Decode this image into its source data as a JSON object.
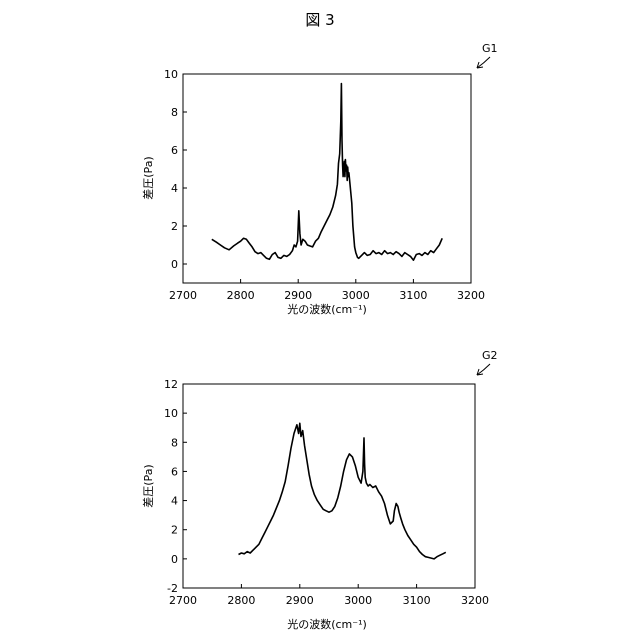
{
  "figure": {
    "title": "図 3"
  },
  "chart_data": [
    {
      "type": "line",
      "id": "G1",
      "xlabel": "光の波数(cm⁻¹)",
      "ylabel": "差圧(Pa)",
      "xlim": [
        2700,
        3200
      ],
      "ylim": [
        -1,
        10
      ],
      "xticks": [
        2700,
        2800,
        2900,
        3000,
        3100,
        3200
      ],
      "yticks": [
        0,
        2,
        4,
        6,
        8,
        10
      ],
      "grid": false,
      "series": [
        {
          "x": [
            2750,
            2758,
            2765,
            2772,
            2780,
            2788,
            2795,
            2800,
            2805,
            2810,
            2815,
            2820,
            2825,
            2830,
            2835,
            2840,
            2845,
            2850,
            2855,
            2860,
            2865,
            2870,
            2875,
            2880,
            2885,
            2890,
            2893,
            2896,
            2899,
            2901,
            2903,
            2905,
            2908,
            2912,
            2916,
            2920,
            2925,
            2930,
            2935,
            2940,
            2945,
            2950,
            2955,
            2960,
            2965,
            2968,
            2970,
            2972,
            2974,
            2975,
            2976,
            2977,
            2978,
            2979,
            2980,
            2981,
            2982,
            2983,
            2984,
            2985,
            2986,
            2987,
            2988,
            2990,
            2993,
            2995,
            2998,
            3000,
            3003,
            3005,
            3010,
            3015,
            3020,
            3025,
            3030,
            3035,
            3040,
            3045,
            3050,
            3055,
            3060,
            3065,
            3070,
            3075,
            3080,
            3085,
            3090,
            3095,
            3100,
            3105,
            3110,
            3115,
            3120,
            3125,
            3130,
            3135,
            3140,
            3145,
            3150
          ],
          "y": [
            1.3,
            1.15,
            1.0,
            0.85,
            0.75,
            0.95,
            1.1,
            1.2,
            1.35,
            1.3,
            1.1,
            0.9,
            0.65,
            0.55,
            0.6,
            0.45,
            0.3,
            0.25,
            0.5,
            0.6,
            0.35,
            0.3,
            0.45,
            0.4,
            0.5,
            0.7,
            1.0,
            0.9,
            1.2,
            2.8,
            1.6,
            1.0,
            1.3,
            1.2,
            1.0,
            0.95,
            0.9,
            1.2,
            1.35,
            1.7,
            2.0,
            2.3,
            2.6,
            3.0,
            3.6,
            4.2,
            5.3,
            5.8,
            7.5,
            9.5,
            6.5,
            5.2,
            4.6,
            5.0,
            5.4,
            4.6,
            5.5,
            4.9,
            5.2,
            4.4,
            5.1,
            4.6,
            4.8,
            4.2,
            3.2,
            2.0,
            0.9,
            0.6,
            0.35,
            0.3,
            0.45,
            0.6,
            0.45,
            0.5,
            0.7,
            0.55,
            0.6,
            0.5,
            0.7,
            0.55,
            0.6,
            0.5,
            0.65,
            0.55,
            0.4,
            0.6,
            0.5,
            0.4,
            0.2,
            0.5,
            0.55,
            0.45,
            0.6,
            0.5,
            0.7,
            0.6,
            0.8,
            1.0,
            1.35
          ]
        }
      ]
    },
    {
      "type": "line",
      "id": "G2",
      "xlabel": "光の波数(cm⁻¹)",
      "ylabel": "差圧(Pa)",
      "xlim": [
        2700,
        3200
      ],
      "ylim": [
        -2,
        12
      ],
      "xticks": [
        2700,
        2800,
        2900,
        3000,
        3100,
        3200
      ],
      "yticks": [
        -2,
        0,
        2,
        4,
        6,
        8,
        10,
        12
      ],
      "grid": false,
      "series": [
        {
          "x": [
            2795,
            2800,
            2805,
            2810,
            2815,
            2820,
            2825,
            2830,
            2835,
            2840,
            2845,
            2850,
            2855,
            2860,
            2865,
            2870,
            2875,
            2880,
            2885,
            2890,
            2895,
            2898,
            2900,
            2902,
            2905,
            2908,
            2912,
            2916,
            2920,
            2925,
            2930,
            2935,
            2940,
            2945,
            2950,
            2955,
            2960,
            2965,
            2970,
            2975,
            2980,
            2985,
            2990,
            2995,
            3000,
            3005,
            3008,
            3010,
            3011,
            3012,
            3014,
            3017,
            3020,
            3025,
            3030,
            3035,
            3040,
            3045,
            3050,
            3055,
            3060,
            3062,
            3065,
            3068,
            3070,
            3073,
            3076,
            3080,
            3085,
            3090,
            3095,
            3100,
            3105,
            3110,
            3115,
            3120,
            3125,
            3130,
            3135,
            3140,
            3145,
            3150
          ],
          "y": [
            0.3,
            0.4,
            0.35,
            0.5,
            0.4,
            0.6,
            0.8,
            1.0,
            1.4,
            1.8,
            2.2,
            2.6,
            3.0,
            3.5,
            4.0,
            4.6,
            5.3,
            6.4,
            7.6,
            8.6,
            9.2,
            8.6,
            9.3,
            8.4,
            8.8,
            7.8,
            6.8,
            5.8,
            5.0,
            4.4,
            4.0,
            3.7,
            3.4,
            3.3,
            3.2,
            3.3,
            3.6,
            4.2,
            5.0,
            6.0,
            6.8,
            7.2,
            7.0,
            6.4,
            5.6,
            5.2,
            6.0,
            8.3,
            6.5,
            5.6,
            5.2,
            5.0,
            5.1,
            4.9,
            5.0,
            4.6,
            4.3,
            3.8,
            3.0,
            2.4,
            2.6,
            3.3,
            3.8,
            3.6,
            3.2,
            2.8,
            2.4,
            2.0,
            1.6,
            1.3,
            1.0,
            0.8,
            0.5,
            0.3,
            0.15,
            0.1,
            0.05,
            0.0,
            0.15,
            0.25,
            0.35,
            0.45
          ]
        }
      ]
    }
  ]
}
